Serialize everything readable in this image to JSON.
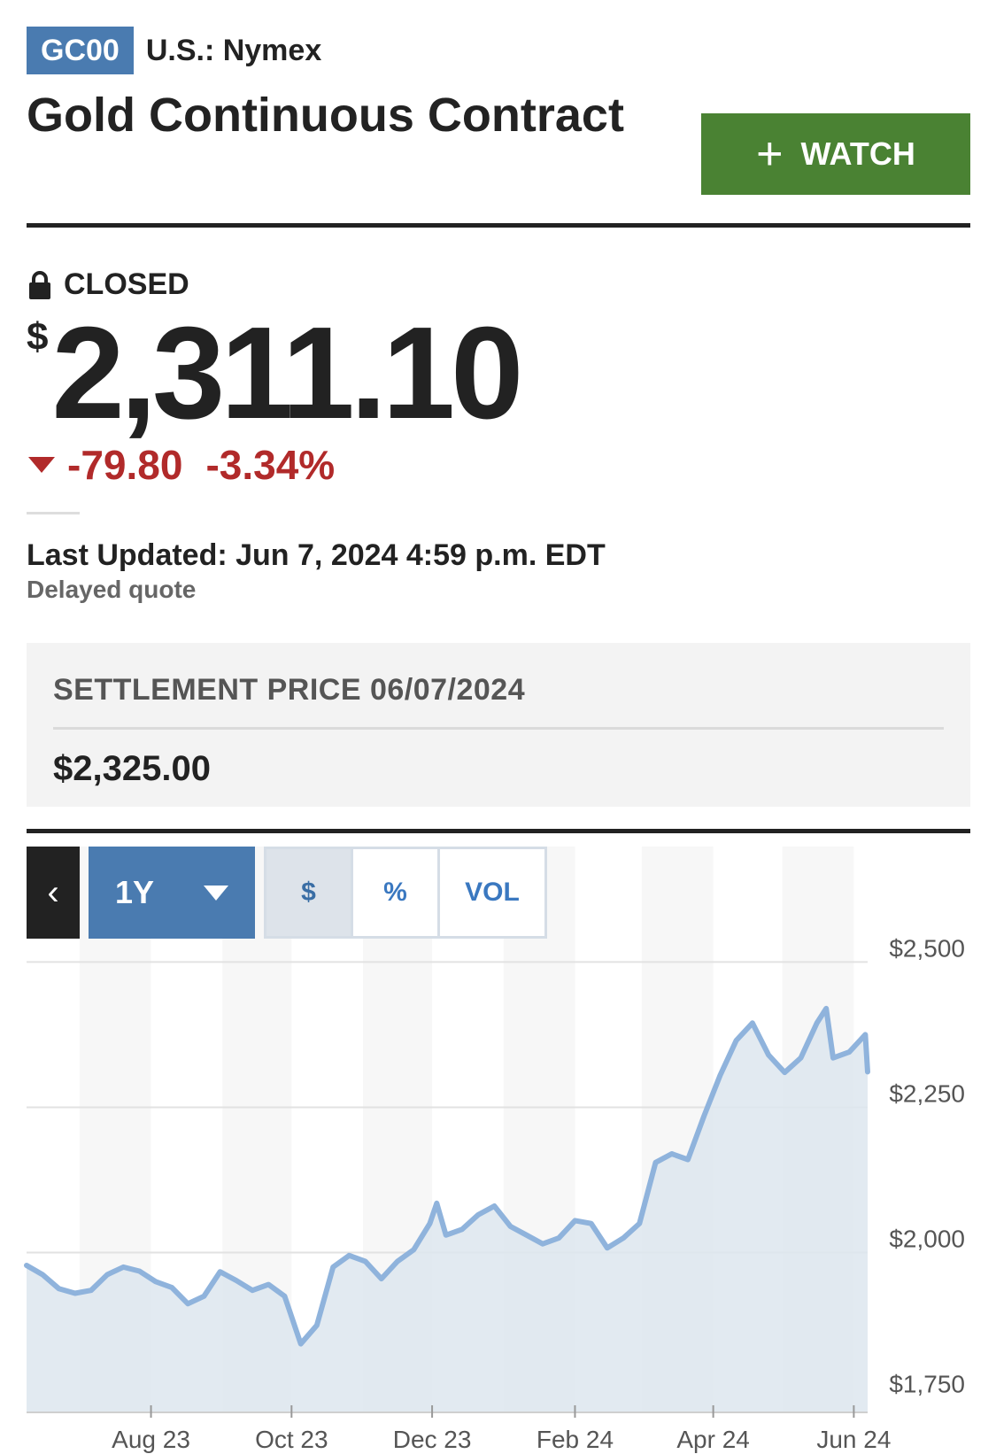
{
  "header": {
    "ticker": "GC00",
    "exchange": "U.S.: Nymex",
    "name": "Gold Continuous Contract",
    "watch_label": "WATCH"
  },
  "quote": {
    "status": "CLOSED",
    "currency_symbol": "$",
    "price": "2,311.10",
    "change": "-79.80",
    "change_percent": "-3.34%",
    "direction": "down",
    "last_updated": "Last Updated: Jun 7, 2024 4:59 p.m. EDT",
    "delayed": "Delayed quote"
  },
  "settlement": {
    "label": "SETTLEMENT PRICE 06/07/2024",
    "value": "$2,325.00"
  },
  "chart_controls": {
    "range": "1Y",
    "modes": [
      "$",
      "%",
      "VOL"
    ],
    "active_mode": "$"
  },
  "colors": {
    "ticker_badge": "#4a7bb0",
    "watch_button": "#4a8233",
    "negative": "#b12a2a",
    "chart_line": "#8fb3dc",
    "chart_fill": "#dde6ef"
  },
  "icons": {
    "status": "lock-icon",
    "watch": "plus-icon",
    "prev": "chevron-left-icon",
    "range": "caret-down-icon",
    "change": "triangle-down-icon"
  },
  "chart_data": {
    "type": "area",
    "y_tick_labels": [
      "$2,500",
      "$2,250",
      "$2,000",
      "$1,750"
    ],
    "y_ticks": [
      2500,
      2250,
      2000,
      1750
    ],
    "ylim": [
      1725,
      2525
    ],
    "x_tick_labels": [
      "Aug 23",
      "Oct 23",
      "Dec 23",
      "Feb 24",
      "Apr 24",
      "Jun 24"
    ],
    "x_ticks": [
      "2023-08-01",
      "2023-10-01",
      "2023-12-01",
      "2024-02-01",
      "2024-04-01",
      "2024-06-01"
    ],
    "xlim": [
      "2023-06-08",
      "2024-06-07"
    ],
    "grid": "horizontal",
    "series": [
      {
        "x": [
          "2023-06-08",
          "2023-06-15",
          "2023-06-22",
          "2023-06-29",
          "2023-07-06",
          "2023-07-13",
          "2023-07-20",
          "2023-07-27",
          "2023-08-03",
          "2023-08-10",
          "2023-08-17",
          "2023-08-24",
          "2023-08-31",
          "2023-09-07",
          "2023-09-14",
          "2023-09-21",
          "2023-09-28",
          "2023-10-05",
          "2023-10-12",
          "2023-10-19",
          "2023-10-26",
          "2023-11-02",
          "2023-11-09",
          "2023-11-16",
          "2023-11-23",
          "2023-11-30",
          "2023-12-03",
          "2023-12-07",
          "2023-12-14",
          "2023-12-21",
          "2023-12-28",
          "2024-01-04",
          "2024-01-11",
          "2024-01-18",
          "2024-01-25",
          "2024-02-01",
          "2024-02-08",
          "2024-02-15",
          "2024-02-22",
          "2024-02-29",
          "2024-03-07",
          "2024-03-14",
          "2024-03-21",
          "2024-03-28",
          "2024-04-04",
          "2024-04-11",
          "2024-04-18",
          "2024-04-25",
          "2024-05-02",
          "2024-05-09",
          "2024-05-16",
          "2024-05-20",
          "2024-05-23",
          "2024-05-30",
          "2024-06-06",
          "2024-06-07"
        ],
        "y": [
          1978,
          1962,
          1938,
          1930,
          1935,
          1962,
          1975,
          1968,
          1950,
          1940,
          1912,
          1925,
          1967,
          1952,
          1935,
          1945,
          1925,
          1843,
          1875,
          1975,
          1995,
          1985,
          1955,
          1985,
          2005,
          2050,
          2085,
          2030,
          2040,
          2065,
          2080,
          2045,
          2030,
          2015,
          2025,
          2055,
          2050,
          2008,
          2025,
          2050,
          2155,
          2170,
          2160,
          2235,
          2305,
          2365,
          2395,
          2340,
          2310,
          2335,
          2395,
          2420,
          2335,
          2345,
          2375,
          2311
        ]
      }
    ]
  }
}
